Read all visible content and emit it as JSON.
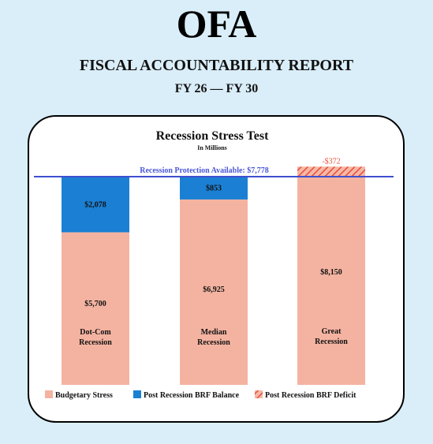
{
  "header": {
    "org": "OFA",
    "report_title": "FISCAL ACCOUNTABILITY REPORT",
    "period": "FY 26 — FY 30"
  },
  "colors": {
    "stress": "#f4b3a1",
    "balance": "#1b80d4",
    "deficit": "#e8503c",
    "line": "#3f4fd0",
    "background": "#daeef9"
  },
  "chart_data": {
    "type": "bar",
    "title": "Recession Stress Test",
    "subtitle": "In Millions",
    "reference_line": {
      "label": "Recession Protection Available: $7,778",
      "value": 7778
    },
    "categories": [
      "Dot-Com Recession",
      "Median Recession",
      "Great Recession"
    ],
    "category_lines": [
      [
        "Dot-Com",
        "Recession"
      ],
      [
        "Median",
        "Recession"
      ],
      [
        "Great",
        "Recession"
      ]
    ],
    "series": [
      {
        "name": "Budgetary Stress",
        "values": [
          5700,
          6925,
          8150
        ],
        "labels": [
          "$5,700",
          "$6,925",
          "$8,150"
        ]
      },
      {
        "name": "Post Recession BRF Balance",
        "values": [
          2078,
          853,
          0
        ],
        "labels": [
          "$2,078",
          "$853",
          ""
        ]
      },
      {
        "name": "Post Recession BRF Deficit",
        "values": [
          0,
          0,
          -372
        ],
        "labels": [
          "",
          "",
          "-$372"
        ]
      }
    ],
    "stacked": true,
    "legend_position": "bottom",
    "grid": false
  }
}
